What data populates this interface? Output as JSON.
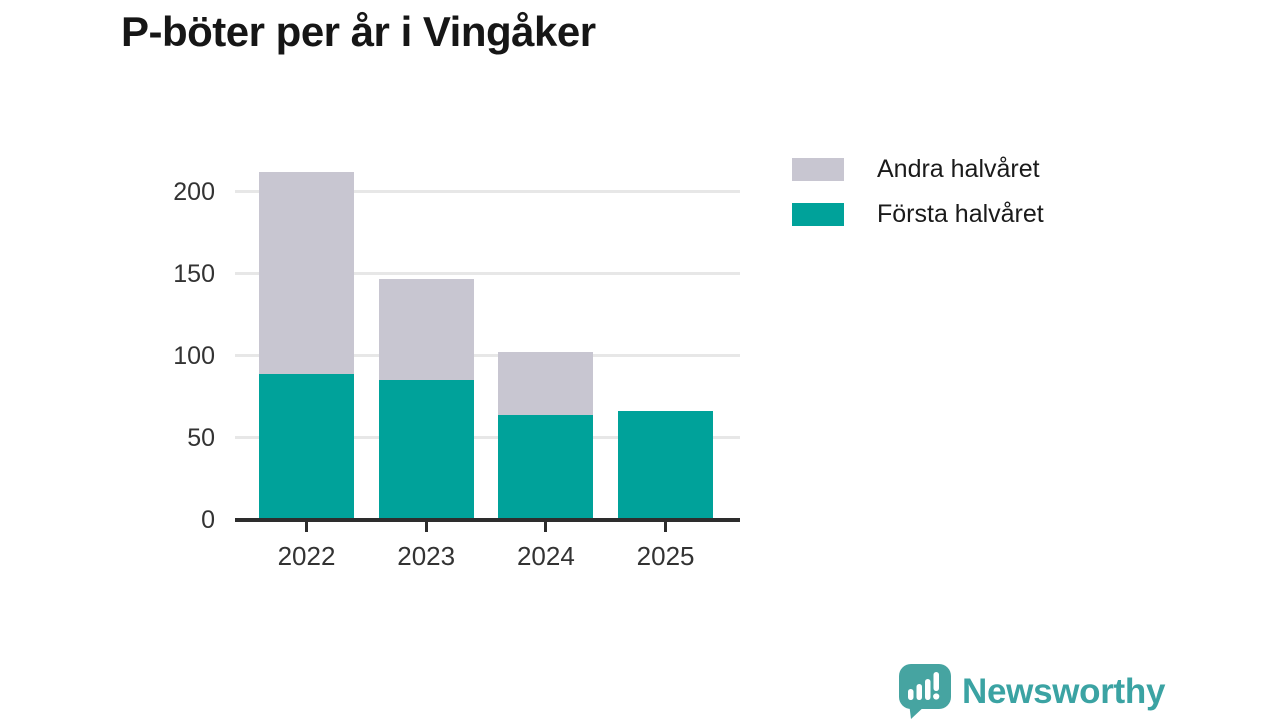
{
  "title": "P-böter per år i Vingåker",
  "chart_data": {
    "type": "bar",
    "stacked": true,
    "title": "P-böter per år i Vingåker",
    "categories": [
      "2022",
      "2023",
      "2024",
      "2025"
    ],
    "series": [
      {
        "name": "Första halvåret",
        "color": "#00a29a",
        "values": [
          88,
          84,
          63,
          65
        ]
      },
      {
        "name": "Andra halvåret",
        "color": "#c8c6d1",
        "values": [
          123,
          62,
          38,
          0
        ]
      }
    ],
    "xlabel": "",
    "ylabel": "",
    "ylim": [
      0,
      220
    ],
    "yticks": [
      0,
      50,
      100,
      150,
      200
    ],
    "ytick_labels": [
      "0",
      "50",
      "100",
      "150",
      "200"
    ],
    "grid": true,
    "gridline_color": "#e7e7e7",
    "axis_line_color": "#2d2d2d",
    "tick_label_color": "#333333",
    "legend_position": "top-right",
    "legend_order": [
      1,
      0
    ]
  },
  "legend": {
    "item_top_label": "Andra halvåret",
    "item_bottom_label": "Första halvåret"
  },
  "branding": {
    "name": "Newsworthy",
    "text_color": "#3ba3a3",
    "icon_color": "#46a4a1",
    "icon_name": "newsworthy-speech-bubble-bar-chart-icon"
  }
}
